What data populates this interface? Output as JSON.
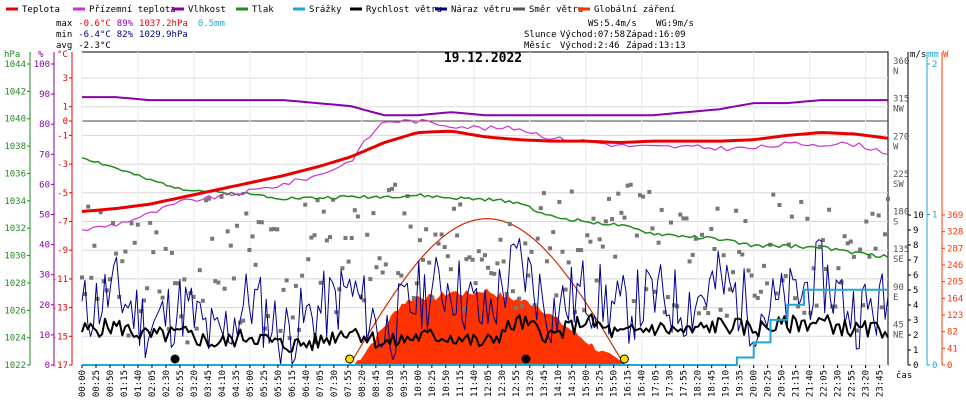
{
  "legend": [
    {
      "label": "Teplota",
      "color": "#e60000"
    },
    {
      "label": "Přízemní teplota",
      "color": "#cc33cc"
    },
    {
      "label": "Vlhkost",
      "color": "#8a00aa"
    },
    {
      "label": "Tlak",
      "color": "#228b22"
    },
    {
      "label": "Srážky",
      "color": "#1fa7d6"
    },
    {
      "label": "Rychlost větru",
      "color": "#000000"
    },
    {
      "label": "Náraz větru",
      "color": "#00008b"
    },
    {
      "label": "Směr větru",
      "color": "#555555"
    },
    {
      "label": "Globální záření",
      "color": "#ff3300"
    }
  ],
  "stats": {
    "max": {
      "label": "max",
      "temp": "-0.6°C",
      "hum": "89%",
      "press": "1037.2hPa",
      "rain": "0.5mm"
    },
    "min": {
      "label": "min",
      "temp": "-6.4°C",
      "hum": "82%",
      "press": "1029.9hPa"
    },
    "avg": {
      "label": "avg",
      "temp": "-2.3°C"
    },
    "ws": "WS:5.4m/s",
    "wg": "WG:9m/s",
    "sun_label": "Slunce",
    "sunrise": "Východ:07:58",
    "sunset": "Západ:16:09",
    "moon_label": "Měsíc",
    "moonrise": "Východ:2:46",
    "moonset": "Západ:13:13"
  },
  "title": "19.12.2022",
  "axis_units": {
    "hpa": "hPa",
    "pct": "%",
    "degc": "°C",
    "ms": "m/s",
    "mm": "mm",
    "w": "W",
    "cas": "čas"
  },
  "chart_data": {
    "type": "line",
    "title": "19.12.2022",
    "x_tick_labels": [
      "00:00",
      "00:25",
      "00:50",
      "01:15",
      "01:40",
      "02:05",
      "02:30",
      "02:55",
      "03:20",
      "03:45",
      "04:10",
      "04:35",
      "05:00",
      "05:25",
      "05:50",
      "06:15",
      "06:40",
      "07:05",
      "07:30",
      "07:55",
      "08:20",
      "08:45",
      "09:10",
      "09:35",
      "10:00",
      "10:25",
      "10:50",
      "11:15",
      "11:40",
      "12:05",
      "12:30",
      "12:55",
      "13:20",
      "13:45",
      "14:10",
      "14:35",
      "15:00",
      "15:25",
      "15:50",
      "16:15",
      "16:40",
      "17:05",
      "17:30",
      "17:55",
      "18:20",
      "18:45",
      "19:10",
      "19:35",
      "20:00",
      "20:25",
      "20:50",
      "21:15",
      "21:40",
      "22:05",
      "22:30",
      "22:55",
      "23:20",
      "23:45"
    ],
    "x_range_hours": [
      0,
      24
    ],
    "axes": {
      "pressure_hpa": {
        "ticks": [
          "1044",
          "1042",
          "1040",
          "1038",
          "1036",
          "1034",
          "1032",
          "1030",
          "1028",
          "1026",
          "1024",
          "1022"
        ],
        "range": [
          1022,
          1045
        ]
      },
      "humidity_pct": {
        "ticks": [
          "100",
          "90",
          "80",
          "70",
          "60",
          "50",
          "40",
          "30",
          "20",
          "10",
          "0"
        ],
        "range": [
          0,
          105
        ]
      },
      "temperature_c": {
        "ticks": [
          "3",
          "1",
          "0",
          "-1",
          "-3",
          "-5",
          "-7",
          "-9",
          "-11",
          "-13",
          "-15",
          "-17"
        ]
      },
      "wind_dir": {
        "ticks": [
          "360 N",
          "315 NW",
          "270 W",
          "225 SW",
          "180 S",
          "135 SE",
          "90 E",
          "45 NE"
        ]
      },
      "wind_ms": {
        "ticks": [
          "10",
          "9",
          "8",
          "7",
          "6",
          "5",
          "4",
          "3",
          "2",
          "1",
          "0"
        ]
      },
      "rain_mm": {
        "ticks": [
          "2",
          "1",
          "0"
        ]
      },
      "radiation_w": {
        "ticks": [
          "369",
          "328",
          "287",
          "246",
          "205",
          "164",
          "123",
          "82",
          "41",
          "0"
        ]
      }
    },
    "series": [
      {
        "name": "Teplota",
        "unit": "°C",
        "x_hours": [
          0,
          1,
          2,
          3,
          4,
          5,
          6,
          7,
          8,
          9,
          10,
          11,
          12,
          13,
          14,
          15,
          16,
          17,
          18,
          19,
          20,
          21,
          22,
          23,
          24
        ],
        "values": [
          -6.3,
          -6.1,
          -5.8,
          -5.3,
          -4.8,
          -4.3,
          -3.8,
          -3.2,
          -2.5,
          -1.5,
          -0.8,
          -0.7,
          -1.1,
          -1.3,
          -1.4,
          -1.4,
          -1.5,
          -1.4,
          -1.4,
          -1.4,
          -1.3,
          -1.0,
          -0.8,
          -0.9,
          -1.2
        ]
      },
      {
        "name": "Přízemní teplota",
        "unit": "°C",
        "x_hours": [
          0,
          1,
          2,
          3,
          4,
          5,
          6,
          7,
          8,
          8.5,
          9,
          10,
          11,
          12,
          13,
          14,
          15,
          16,
          17,
          18,
          19,
          20,
          21,
          22,
          23,
          24
        ],
        "values": [
          -7.6,
          -7.2,
          -6.5,
          -5.6,
          -5.3,
          -4.9,
          -4.4,
          -3.8,
          -2.8,
          -1.2,
          0.0,
          0.0,
          -0.3,
          -0.5,
          -0.5,
          -1.2,
          -1.4,
          -1.7,
          -1.8,
          -1.8,
          -1.9,
          -1.9,
          -1.6,
          -1.6,
          -1.6,
          -2.2
        ]
      },
      {
        "name": "Vlhkost",
        "unit": "%",
        "x_hours": [
          0,
          1,
          2,
          3,
          4,
          5,
          6,
          7,
          8,
          9,
          10,
          11,
          12,
          13,
          14,
          15,
          16,
          17,
          18,
          19,
          20,
          21,
          22,
          23,
          24
        ],
        "values": [
          89,
          89,
          88,
          88,
          88,
          88,
          88,
          87,
          86,
          83,
          83,
          84,
          83,
          83,
          83,
          83,
          83,
          83,
          84,
          85,
          87,
          87,
          88,
          88,
          88
        ]
      },
      {
        "name": "Tlak",
        "unit": "hPa",
        "x_hours": [
          0,
          1,
          2,
          3,
          4,
          5,
          6,
          7,
          8,
          9,
          10,
          11,
          12,
          13,
          14,
          15,
          16,
          17,
          18,
          19,
          20,
          21,
          22,
          23,
          24
        ],
        "values": [
          1037.2,
          1036.4,
          1035.5,
          1034.9,
          1034.6,
          1034.5,
          1034.2,
          1034.2,
          1034.3,
          1034.3,
          1034.4,
          1034.2,
          1034.1,
          1033.9,
          1032.8,
          1032.5,
          1032.2,
          1031.6,
          1031.4,
          1031.2,
          1030.7,
          1030.7,
          1030.6,
          1030.2,
          1029.9
        ]
      },
      {
        "name": "Srážky",
        "unit": "mm",
        "x_hours": [
          0,
          19,
          19.5,
          20,
          20.5,
          21,
          21.5,
          22,
          24
        ],
        "values": [
          0,
          0,
          0.05,
          0.15,
          0.3,
          0.4,
          0.5,
          0.5,
          0.5
        ]
      },
      {
        "name": "Rychlost větru",
        "unit": "m/s",
        "x_hours": [
          0,
          1,
          2,
          3,
          4,
          5,
          6,
          7,
          8,
          9,
          10,
          11,
          12,
          13,
          14,
          15,
          16,
          17,
          18,
          19,
          20,
          21,
          22,
          23,
          24
        ],
        "values": [
          2.3,
          2.6,
          1.9,
          2.1,
          1.4,
          2.0,
          1.3,
          1.5,
          2.4,
          1.4,
          1.9,
          1.9,
          1.4,
          2.9,
          1.9,
          3.0,
          2.0,
          2.5,
          2.2,
          2.7,
          2.4,
          2.7,
          2.9,
          2.3,
          2.4
        ]
      },
      {
        "name": "Náraz větru",
        "unit": "m/s",
        "x_hours": [
          0,
          1,
          2,
          3,
          4,
          5,
          6,
          7,
          8,
          9,
          10,
          11,
          12,
          13,
          14,
          15,
          16,
          17,
          18,
          19,
          20,
          21,
          22,
          23,
          24
        ],
        "values": [
          3.5,
          5.0,
          2.5,
          4.0,
          1.5,
          4.5,
          2.0,
          3.5,
          5.0,
          2.0,
          4.5,
          5.5,
          3.0,
          7.0,
          3.5,
          5.0,
          3.5,
          4.5,
          4.0,
          5.5,
          3.5,
          4.0,
          6.0,
          3.5,
          4.0
        ]
      },
      {
        "name": "Směr větru",
        "unit": "°",
        "x_hours": [
          0,
          1,
          2,
          3,
          4,
          5,
          6,
          7,
          8,
          9,
          10,
          11,
          12,
          13,
          14,
          15,
          16,
          17,
          18,
          19,
          20,
          21,
          22,
          23,
          24
        ],
        "values": [
          130,
          100,
          120,
          90,
          150,
          110,
          90,
          140,
          120,
          160,
          130,
          110,
          180,
          140,
          150,
          120,
          160,
          130,
          140,
          120,
          150,
          130,
          140,
          110,
          130
        ]
      },
      {
        "name": "Globální záření",
        "unit": "W",
        "x_hours": [
          8.1,
          8.5,
          9,
          9.5,
          10,
          10.5,
          11,
          11.5,
          12,
          12.5,
          13,
          13.5,
          14,
          14.5,
          15,
          15.5,
          16,
          16.2
        ],
        "values": [
          0,
          40,
          95,
          150,
          170,
          165,
          180,
          175,
          185,
          170,
          160,
          150,
          120,
          90,
          60,
          30,
          8,
          0
        ]
      }
    ],
    "annotations": {
      "sunrise_hour": 7.97,
      "sunset_hour": 16.15,
      "moonrise_hour": 2.77,
      "moonset_hour": 13.22
    }
  }
}
